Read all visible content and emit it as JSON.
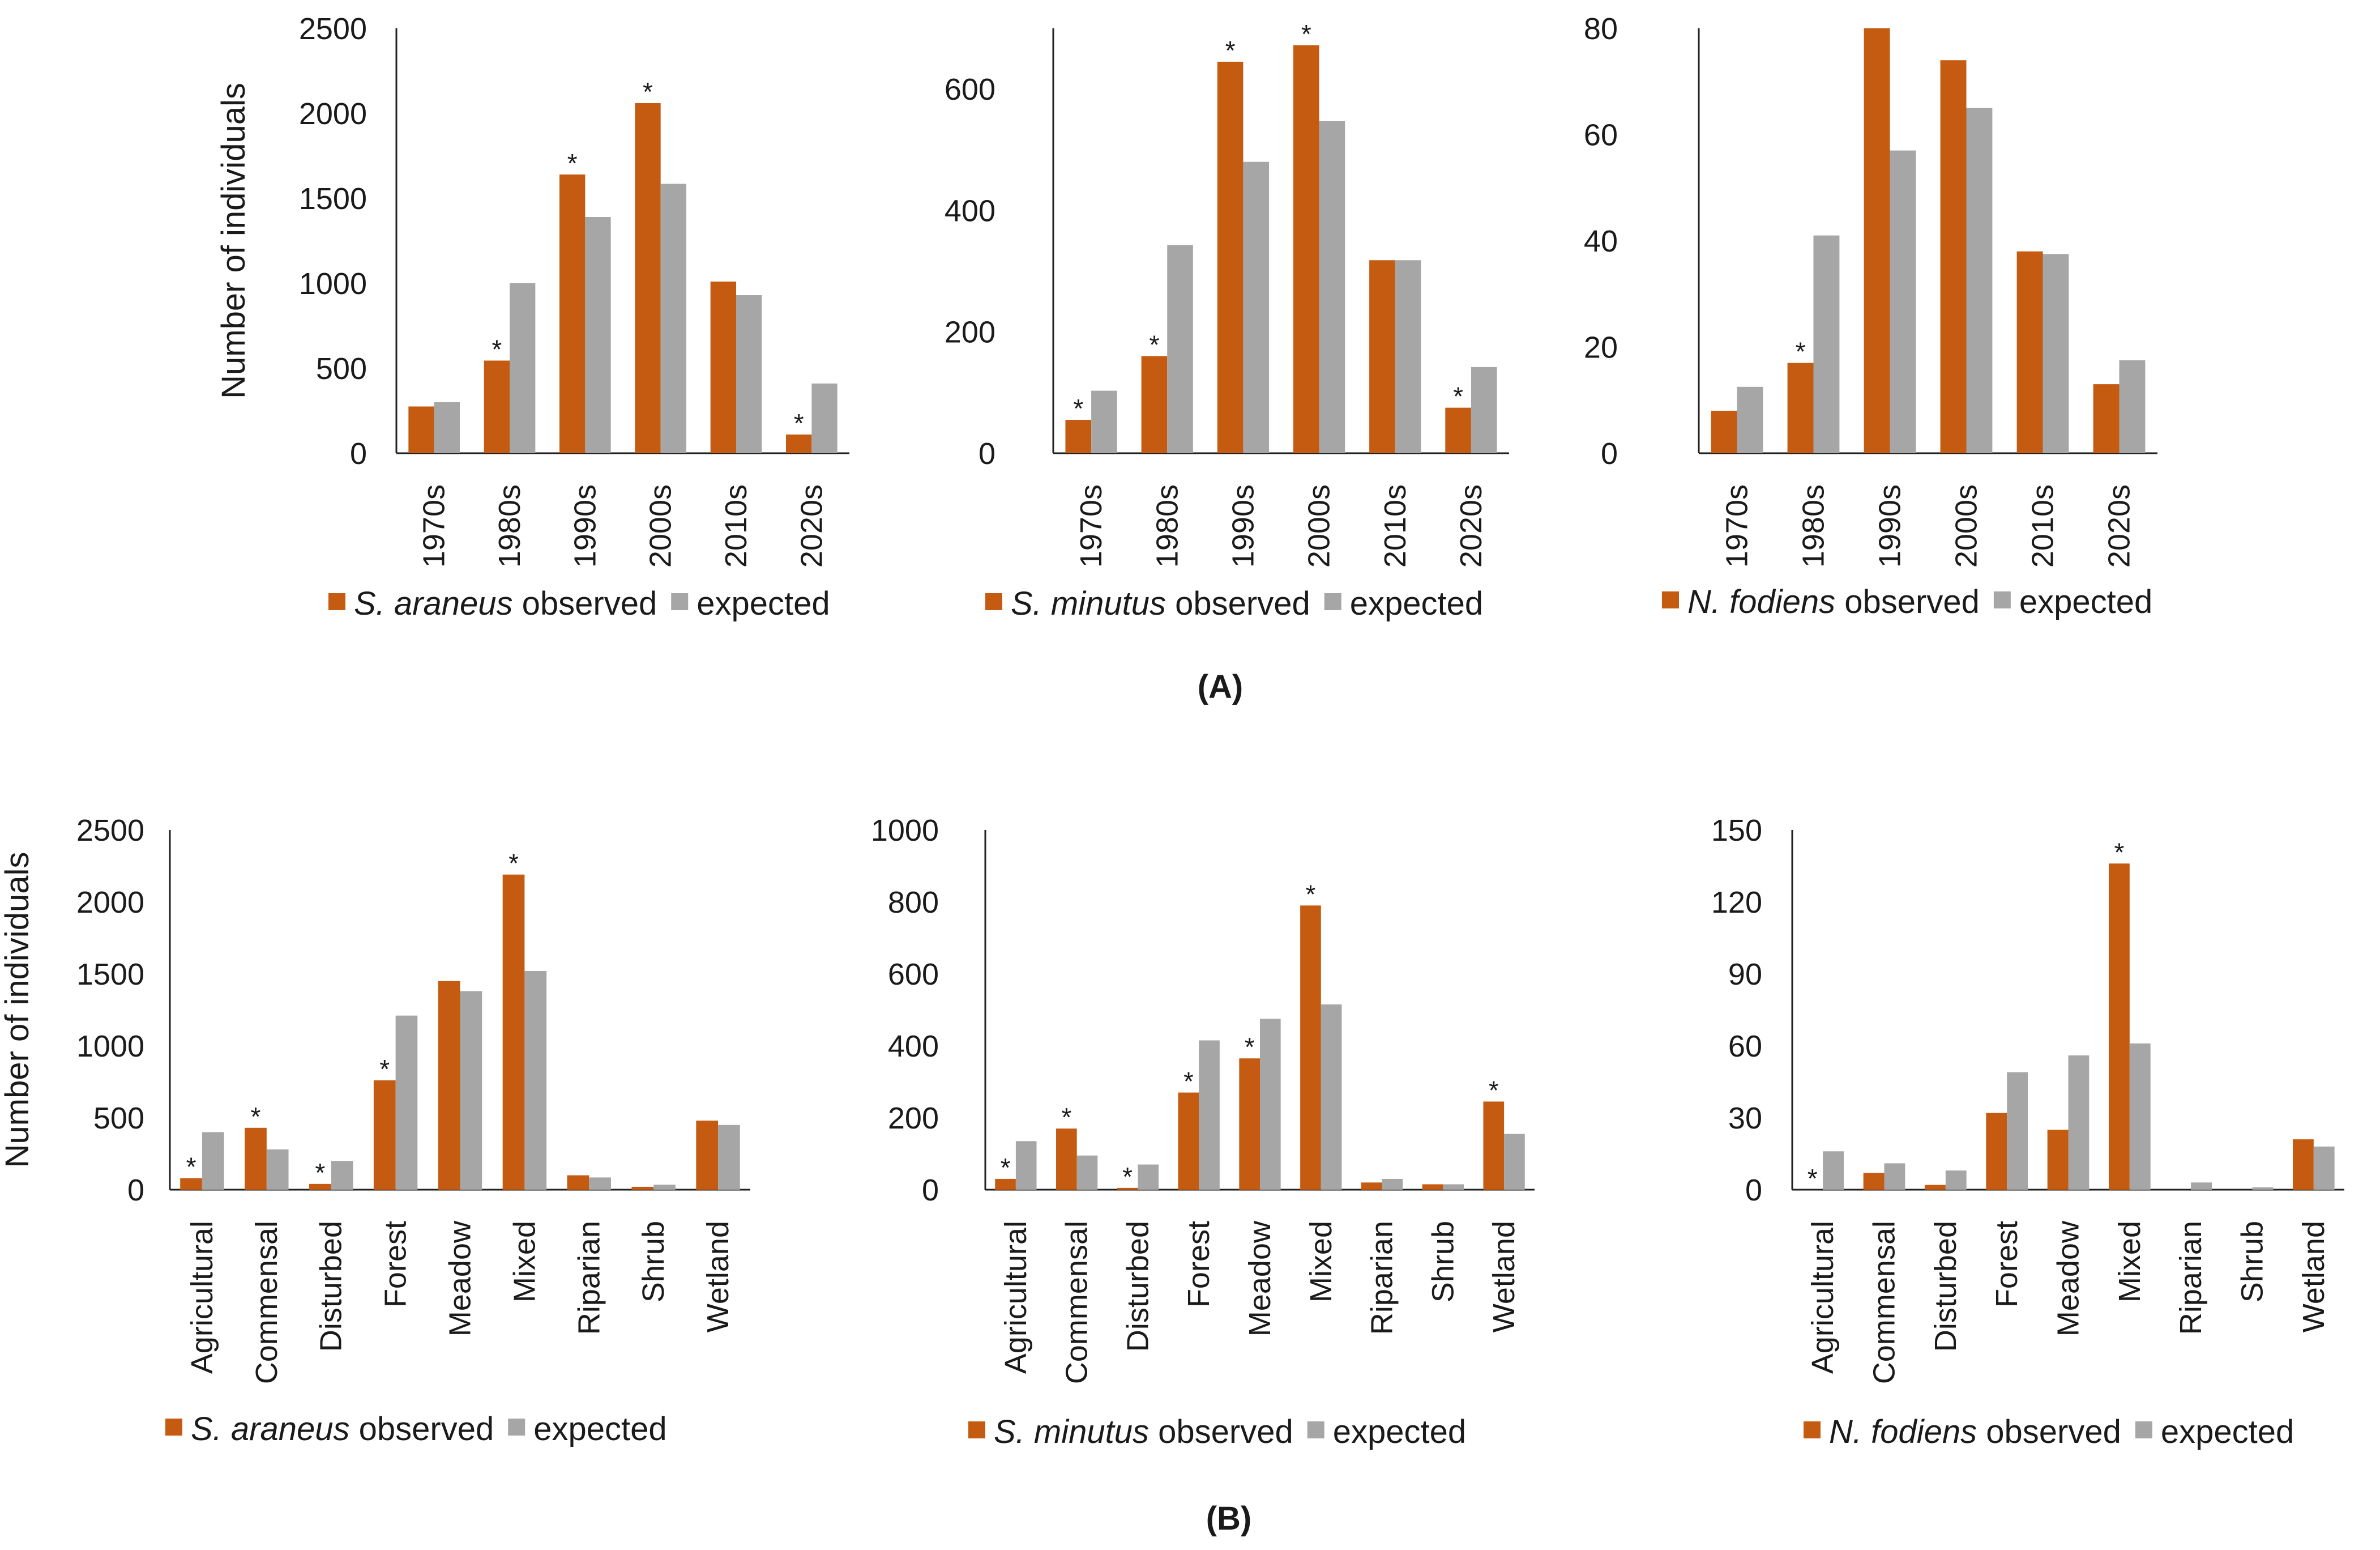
{
  "figure": {
    "panel_a_label": "(A)",
    "panel_b_label": "(B)"
  },
  "colors": {
    "observed": "#C55A11",
    "expected": "#A6A6A6",
    "axis": "#222222",
    "text": "#1a1a1a"
  },
  "chart_data": [
    {
      "type": "bar",
      "panel": "A",
      "categories": [
        "1970s",
        "1980s",
        "1990s",
        "2000s",
        "2010s",
        "2020s"
      ],
      "series": [
        {
          "name": "observed",
          "values": [
            275,
            545,
            1640,
            2060,
            1010,
            110
          ]
        },
        {
          "name": "expected",
          "values": [
            300,
            1000,
            1390,
            1585,
            930,
            410
          ]
        }
      ],
      "significant": [
        false,
        true,
        true,
        true,
        false,
        true
      ],
      "ylim": [
        0,
        2500
      ],
      "yticks": [
        0,
        500,
        1000,
        1500,
        2000,
        2500
      ],
      "ylabel": "Number of individuals",
      "legend": {
        "species": "S. araneus",
        "observed_suffix": " observed",
        "expected": "expected"
      }
    },
    {
      "type": "bar",
      "panel": "A",
      "categories": [
        "1970s",
        "1980s",
        "1990s",
        "2000s",
        "2010s",
        "2020s"
      ],
      "series": [
        {
          "name": "observed",
          "values": [
            55,
            160,
            645,
            672,
            318,
            75
          ]
        },
        {
          "name": "expected",
          "values": [
            103,
            343,
            480,
            547,
            318,
            142
          ]
        }
      ],
      "significant": [
        true,
        true,
        true,
        true,
        false,
        true
      ],
      "ylim": [
        0,
        700
      ],
      "yticks": [
        0,
        200,
        400,
        600
      ],
      "ylabel": "",
      "legend": {
        "species": "S. minutus",
        "observed_suffix": " observed",
        "expected": "expected"
      }
    },
    {
      "type": "bar",
      "panel": "A",
      "categories": [
        "1970s",
        "1980s",
        "1990s",
        "2000s",
        "2010s",
        "2020s"
      ],
      "series": [
        {
          "name": "observed",
          "values": [
            8,
            17,
            80,
            74,
            38,
            13
          ]
        },
        {
          "name": "expected",
          "values": [
            12.5,
            41,
            57,
            65,
            37.5,
            17.5
          ]
        }
      ],
      "significant": [
        false,
        true,
        false,
        false,
        false,
        false
      ],
      "ylim": [
        0,
        80
      ],
      "yticks": [
        0,
        20,
        40,
        60,
        80
      ],
      "ylabel": "",
      "legend": {
        "species": "N. fodiens",
        "observed_suffix": " observed",
        "expected": "expected"
      }
    },
    {
      "type": "bar",
      "panel": "B",
      "categories": [
        "Agricultural",
        "Commensal",
        "Disturbed",
        "Forest",
        "Meadow",
        "Mixed",
        "Riparian",
        "Shrub",
        "Wetland"
      ],
      "series": [
        {
          "name": "observed",
          "values": [
            80,
            430,
            40,
            760,
            1450,
            2190,
            100,
            20,
            480
          ]
        },
        {
          "name": "expected",
          "values": [
            400,
            280,
            200,
            1210,
            1380,
            1520,
            85,
            35,
            450
          ]
        }
      ],
      "significant": [
        true,
        true,
        true,
        true,
        false,
        true,
        false,
        false,
        false
      ],
      "ylim": [
        0,
        2500
      ],
      "yticks": [
        0,
        500,
        1000,
        1500,
        2000,
        2500
      ],
      "ylabel": "Number of individuals",
      "legend": {
        "species": "S. araneus",
        "observed_suffix": " observed",
        "expected": "expected"
      }
    },
    {
      "type": "bar",
      "panel": "B",
      "categories": [
        "Agricultural",
        "Commensal",
        "Disturbed",
        "Forest",
        "Meadow",
        "Mixed",
        "Riparian",
        "Shrub",
        "Wetland"
      ],
      "series": [
        {
          "name": "observed",
          "values": [
            30,
            170,
            5,
            270,
            365,
            790,
            20,
            15,
            245
          ]
        },
        {
          "name": "expected",
          "values": [
            135,
            95,
            70,
            415,
            475,
            515,
            30,
            15,
            155
          ]
        }
      ],
      "significant": [
        true,
        true,
        true,
        true,
        true,
        true,
        false,
        false,
        true
      ],
      "ylim": [
        0,
        1000
      ],
      "yticks": [
        0,
        200,
        400,
        600,
        800,
        1000
      ],
      "ylabel": "",
      "legend": {
        "species": "S. minutus",
        "observed_suffix": " observed",
        "expected": "expected"
      }
    },
    {
      "type": "bar",
      "panel": "B",
      "categories": [
        "Agricultural",
        "Commensal",
        "Disturbed",
        "Forest",
        "Meadow",
        "Mixed",
        "Riparian",
        "Shrub",
        "Wetland"
      ],
      "series": [
        {
          "name": "observed",
          "values": [
            0,
            7,
            2,
            32,
            25,
            136,
            0,
            0,
            21
          ]
        },
        {
          "name": "expected",
          "values": [
            16,
            11,
            8,
            49,
            56,
            61,
            3,
            1,
            18
          ]
        }
      ],
      "significant": [
        true,
        false,
        false,
        false,
        false,
        true,
        false,
        false,
        false
      ],
      "ylim": [
        0,
        150
      ],
      "yticks": [
        0,
        30,
        60,
        90,
        120,
        150
      ],
      "ylabel": "",
      "legend": {
        "species": "N. fodiens",
        "observed_suffix": " observed",
        "expected": "expected"
      }
    }
  ]
}
